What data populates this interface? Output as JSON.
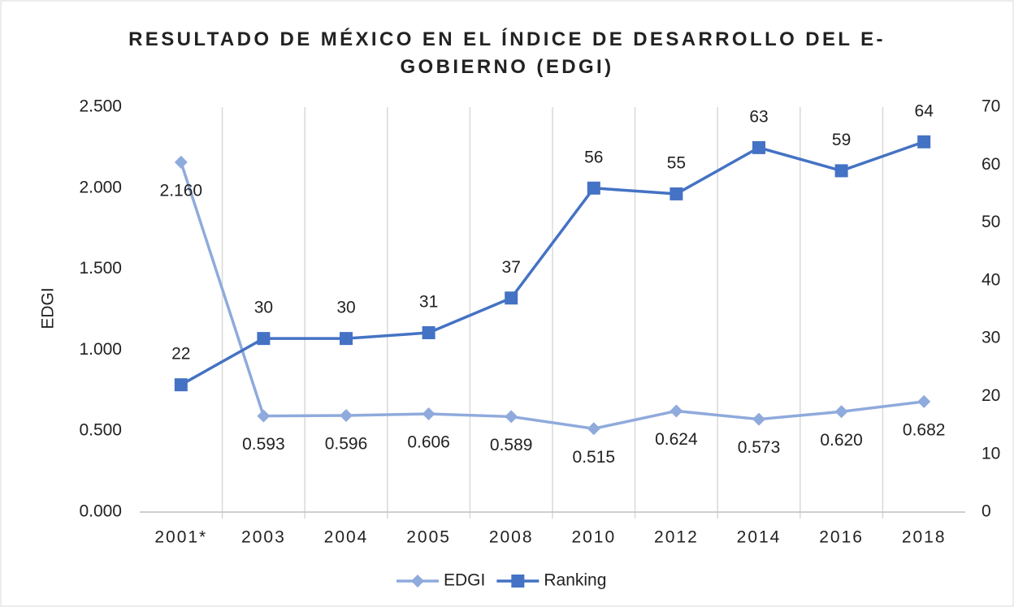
{
  "chart_data": {
    "type": "line",
    "title": "RESULTADO DE MÉXICO EN EL ÍNDICE DE DESARROLLO DEL E-GOBIERNO (EDGI)",
    "y_label": "EDGI",
    "categories": [
      "2001*",
      "2003",
      "2004",
      "2005",
      "2008",
      "2010",
      "2012",
      "2014",
      "2016",
      "2018"
    ],
    "series": [
      {
        "name": "EDGI",
        "color": "#8faadc",
        "marker": "diamond",
        "label_position": "below",
        "values": [
          2.16,
          0.593,
          0.596,
          0.606,
          0.589,
          0.515,
          0.624,
          0.573,
          0.62,
          0.682
        ],
        "value_labels": [
          "2.160",
          "0.593",
          "0.596",
          "0.606",
          "0.589",
          "0.515",
          "0.624",
          "0.573",
          "0.620",
          "0.682"
        ]
      },
      {
        "name": "Ranking",
        "color": "#4472c4",
        "marker": "square",
        "axis": "y2",
        "label_position": "above",
        "values": [
          22,
          30,
          30,
          31,
          37,
          56,
          55,
          63,
          59,
          64
        ]
      }
    ],
    "ylim": [
      0,
      2.5
    ],
    "yticks": [
      {
        "value": 0,
        "label": "0.000"
      },
      {
        "value": 0.5,
        "label": "0.500"
      },
      {
        "value": 1,
        "label": "1.000"
      },
      {
        "value": 1.5,
        "label": "1.500"
      },
      {
        "value": 2,
        "label": "2.000"
      },
      {
        "value": 2.5,
        "label": "2.500"
      }
    ],
    "y2lim": [
      0,
      70
    ],
    "y2ticks": [
      0,
      10,
      20,
      30,
      40,
      50,
      60,
      70
    ],
    "grid": "vertical",
    "legend": "bottom"
  }
}
